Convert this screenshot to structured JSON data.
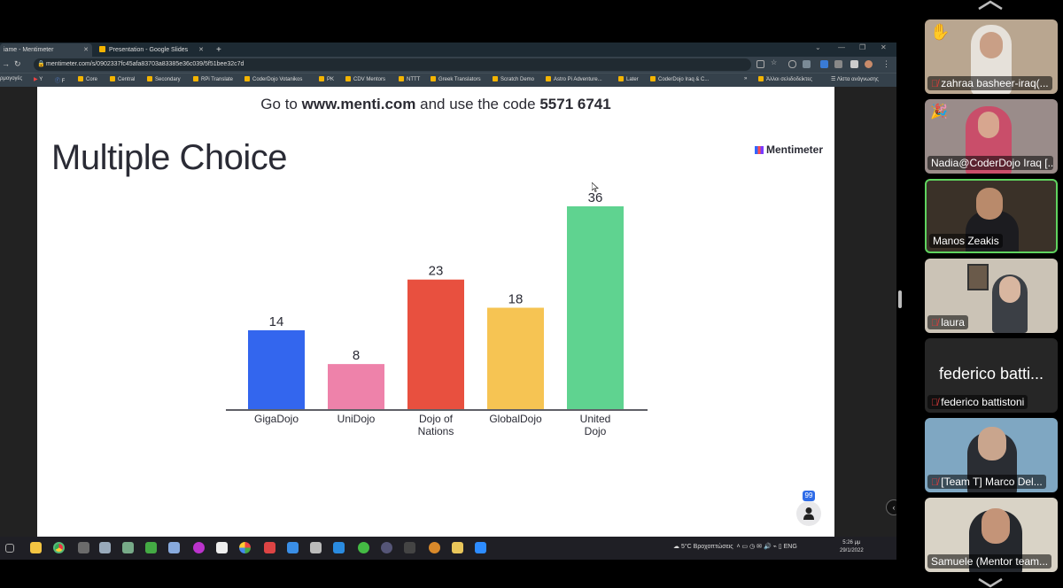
{
  "browser": {
    "tabs": [
      {
        "label": "iame - Mentimeter",
        "active": true
      },
      {
        "label": "Presentation - Google Slides",
        "active": false
      }
    ],
    "new_tab": "+",
    "url": "mentimeter.com/s/0902337fc45afa83703a83385e36c039/5f51bee32c7d",
    "bookmarks": [
      "ρμογογές",
      "Y",
      "F",
      "Core",
      "Central",
      "Secondary",
      "RPi Translate",
      "CoderDojo Votanikos",
      "PK",
      "CDV Mentors",
      "NTTT",
      "Greek Translators",
      "Scratch Demo",
      "Astro Pi Adventure...",
      "Later",
      "CoderDojo Iraq & C...",
      "»",
      "Άλλοι σελιδοδείκτες",
      "Λίστα ανάγνωσης"
    ]
  },
  "slide": {
    "join_prefix": "Go to",
    "join_site": "www.menti.com",
    "join_middle": "and use the code",
    "join_code": "5571 6741",
    "title": "Multiple Choice",
    "brand": "Mentimeter",
    "participants_count": "99"
  },
  "chart_data": {
    "type": "bar",
    "categories": [
      [
        "GigaDojo"
      ],
      [
        "UniDojo"
      ],
      [
        "Dojo of",
        "Nations"
      ],
      [
        "GlobalDojo"
      ],
      [
        "United",
        "Dojo"
      ]
    ],
    "values": [
      14,
      8,
      23,
      18,
      36
    ],
    "colors": [
      "#3366ee",
      "#ee82aa",
      "#e8503f",
      "#f6c453",
      "#5fd390"
    ],
    "ylim": [
      0,
      36
    ]
  },
  "taskbar": {
    "weather": "5°C Βροχοπτώσεις",
    "lang": "ENG",
    "time": "5:26 μμ",
    "date": "29/1/2022"
  },
  "participants": [
    {
      "name": "zahraa basheer-iraq(...",
      "muted": true,
      "reaction": "hand",
      "active": false
    },
    {
      "name": "Nadia@CoderDojo Iraq [...",
      "muted": false,
      "reaction": "party",
      "active": false
    },
    {
      "name": "Manos Zeakis",
      "muted": false,
      "active": true
    },
    {
      "name": "laura",
      "muted": true,
      "active": false
    },
    {
      "name": "federico battistoni",
      "big": "federico batti...",
      "muted": true,
      "active": false
    },
    {
      "name": "[Team T] Marco Del...",
      "muted": true,
      "active": false
    },
    {
      "name": "Samuele (Mentor team...",
      "muted": false,
      "active": false
    }
  ]
}
